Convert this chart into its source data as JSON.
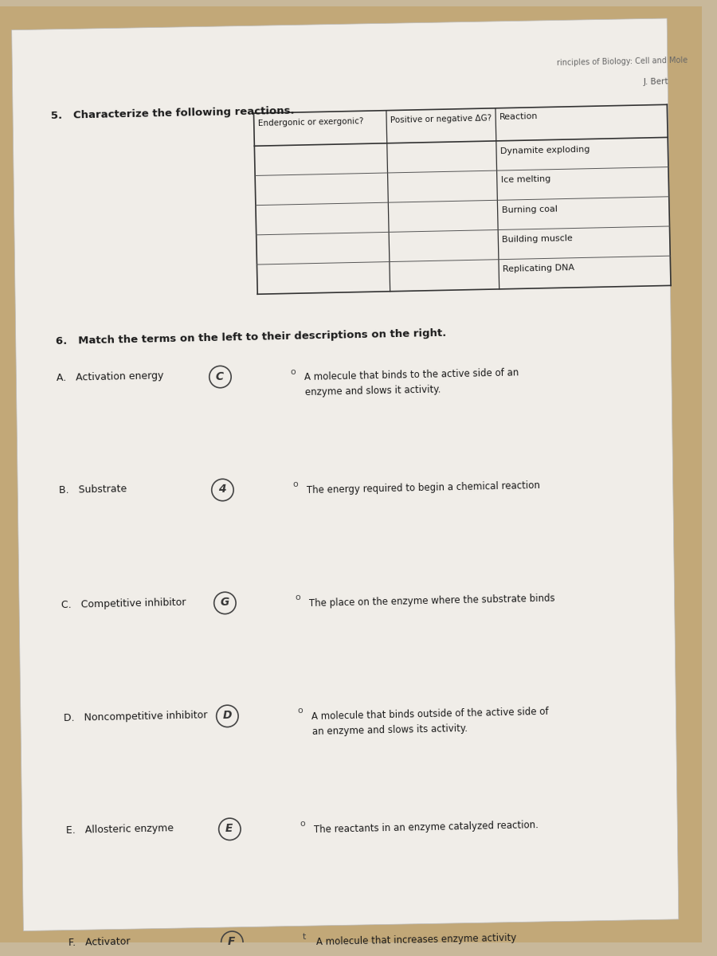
{
  "bg_color_top_right": "#c8a96e",
  "bg_color_main": "#c8b89a",
  "paper_color": "#f0ede8",
  "shadow_color": "#a09080",
  "section5_title": "5.   Characterize the following reactions.",
  "table_col1_header": "Endergonic or exergonic?",
  "table_col2_header": "Positive or negative ΔG?",
  "table_col3_header": "Reaction",
  "reactions": [
    "Dynamite exploding",
    "Ice melting",
    "Burning coal",
    "Building muscle",
    "Replicating DNA"
  ],
  "section6_title": "6.   Match the terms on the left to their descriptions on the right.",
  "terms": [
    "A.   Activation energy",
    "B.   Substrate",
    "C.   Competitive inhibitor",
    "D.   Noncompetitive inhibitor",
    "E.   Allosteric enzyme",
    "F.   Activator"
  ],
  "answers": [
    "C",
    "4",
    "G",
    "D",
    "E",
    "F"
  ],
  "descriptions": [
    "A molecule that binds to the active side of an\nenzyme and slows it activity.",
    "The energy required to begin a chemical reaction",
    "The place on the enzyme where the substrate binds",
    "A molecule that binds outside of the active side of\nan enzyme and slows its activity.",
    "The reactants in an enzyme catalyzed reaction.",
    "A molecule that increases enzyme activity"
  ],
  "desc_bullets": [
    "o",
    "o",
    "o",
    "o",
    "o",
    "t"
  ],
  "header_right": "rinciples of Biology: Cell and Mole",
  "header_right2": "J. Bert",
  "line_color": "#333333",
  "text_color": "#1a1a1a",
  "faint_text_color": "#888888"
}
